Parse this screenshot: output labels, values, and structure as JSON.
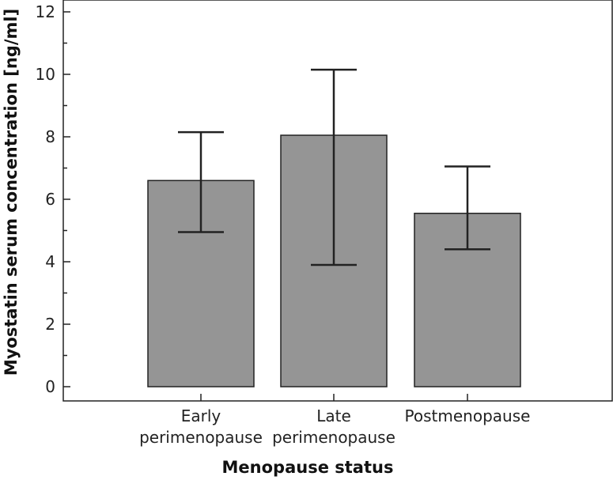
{
  "chart_data": {
    "type": "bar",
    "categories": [
      [
        "Early",
        "perimenopause"
      ],
      [
        "Late",
        "perimenopause"
      ],
      [
        "Postmenopause"
      ]
    ],
    "values": [
      6.6,
      8.05,
      5.55
    ],
    "error_upper": [
      8.15,
      10.15,
      7.05
    ],
    "error_lower": [
      4.95,
      3.9,
      4.4
    ],
    "xlabel": "Menopause status",
    "ylabel": "Myostatin serum concentration [ng/ml]",
    "ylim": [
      0,
      12
    ],
    "yticks": [
      0,
      2,
      4,
      6,
      8,
      10,
      12
    ],
    "grid": false,
    "bar_color": "#959595"
  }
}
